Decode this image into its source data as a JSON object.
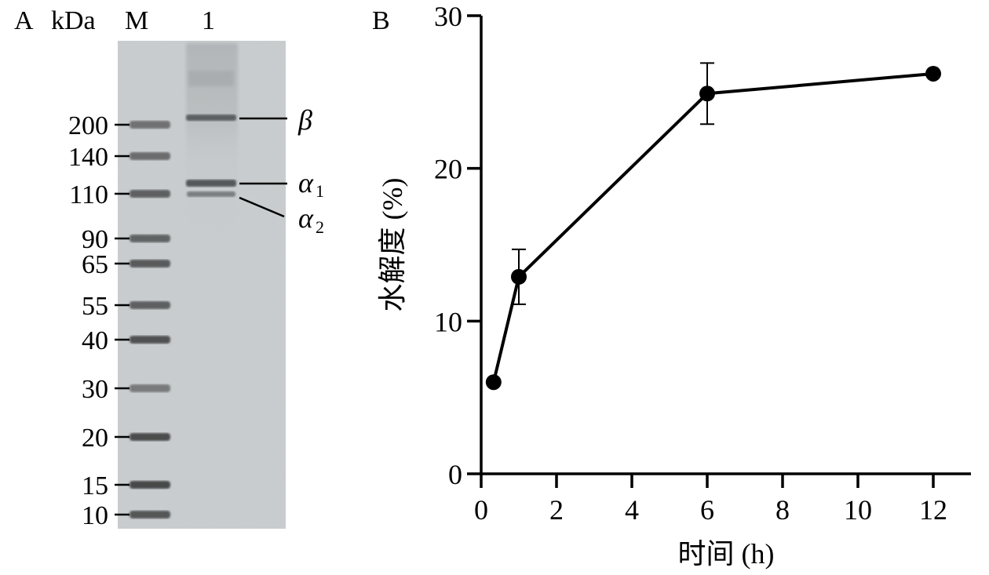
{
  "panel_a": {
    "panel_label": "A",
    "unit_label": "kDa",
    "lane_labels": [
      "M",
      "1"
    ],
    "markers": [
      "200",
      "140",
      "110",
      "90",
      "65",
      "55",
      "40",
      "30",
      "20",
      "15",
      "10"
    ],
    "band_labels": {
      "beta": "β",
      "alpha1": "α",
      "alpha1_sub": "1",
      "alpha2": "α",
      "alpha2_sub": "2"
    }
  },
  "panel_b": {
    "panel_label": "B"
  },
  "chart_data": [
    {
      "type": "image",
      "content": "SDS-PAGE gel",
      "unit": "kDa",
      "lanes": [
        "M",
        "1"
      ],
      "marker_sizes_kda": [
        200,
        140,
        110,
        90,
        65,
        55,
        40,
        30,
        20,
        15,
        10
      ],
      "band_annotations": [
        "β",
        "α1",
        "α2"
      ]
    },
    {
      "type": "line",
      "title": "",
      "xlabel": "时间 (h)",
      "ylabel": "水解度 (%)",
      "xlim": [
        0,
        13
      ],
      "ylim": [
        0,
        30
      ],
      "xticks": [
        0,
        2,
        4,
        6,
        8,
        10,
        12
      ],
      "yticks": [
        0,
        10,
        20,
        30
      ],
      "grid": false,
      "series": [
        {
          "x": [
            0.33,
            1,
            6,
            12
          ],
          "y": [
            6.0,
            12.9,
            24.9,
            26.2
          ],
          "error": [
            0,
            1.8,
            2.0,
            0
          ]
        }
      ]
    }
  ]
}
